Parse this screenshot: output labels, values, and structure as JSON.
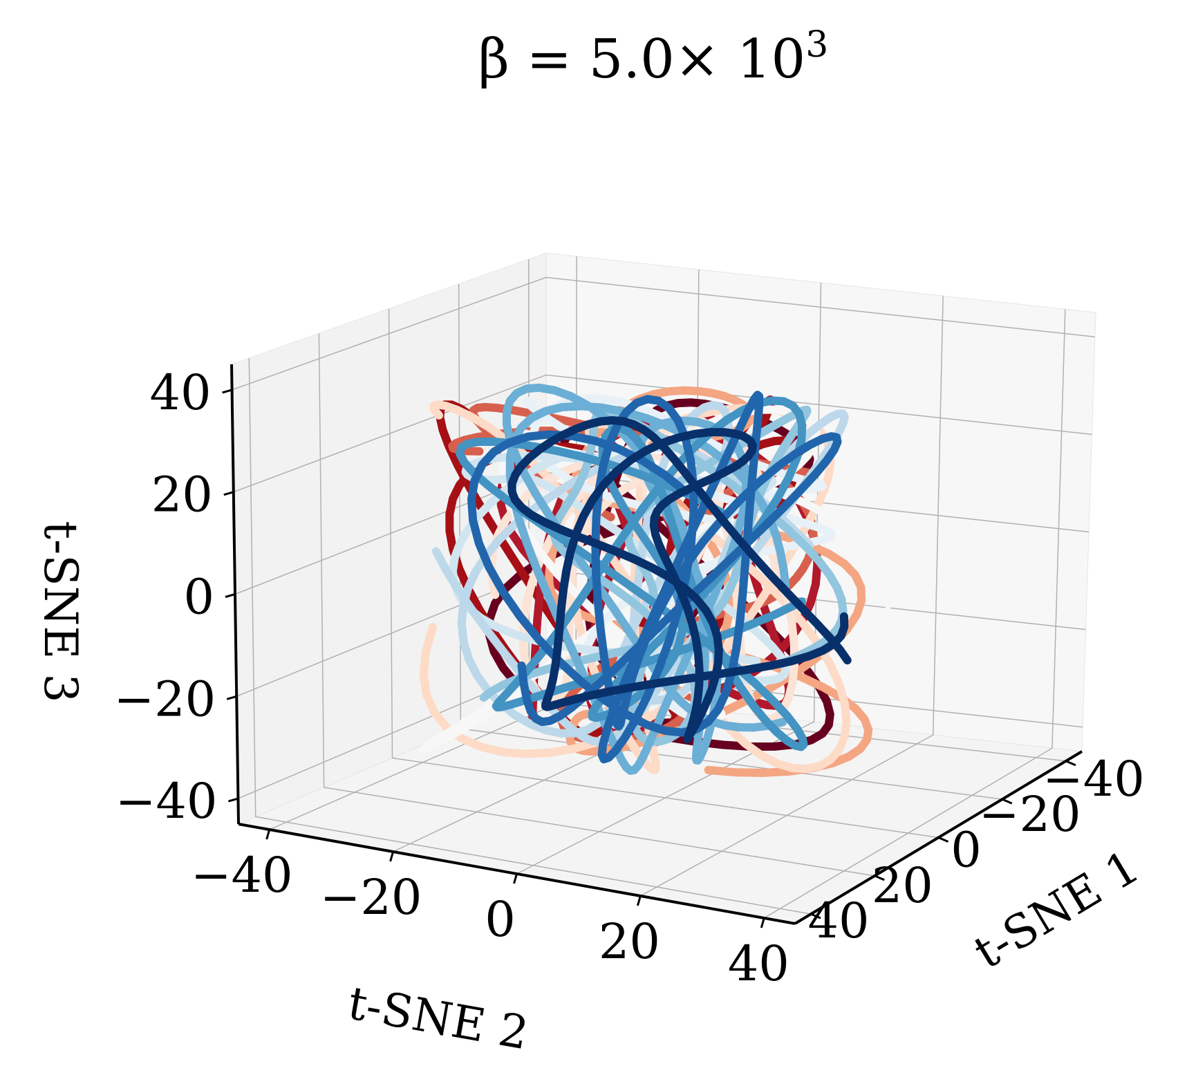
{
  "title": {
    "prefix": "β = 5.0× 10",
    "exp": "3"
  },
  "chart_data": {
    "type": "line3d",
    "xlabel": "t-SNE 1",
    "ylabel": "t-SNE 2",
    "zlabel": "t-SNE 3",
    "xlim": [
      -45,
      45
    ],
    "ylim": [
      -45,
      45
    ],
    "zlim": [
      -45,
      45
    ],
    "xticks": [
      "−40",
      "−20",
      "0",
      "20",
      "40"
    ],
    "yticks": [
      "−40",
      "−20",
      "0",
      "20",
      "40"
    ],
    "zticks": [
      "−40",
      "−20",
      "0",
      "20",
      "40"
    ],
    "grid": true,
    "colormap": "RdBu",
    "curve_colors": [
      "#67001f",
      "#a50f15",
      "#b2182b",
      "#d6604d",
      "#f4a582",
      "#fddbc7",
      "#fbe3d6",
      "#f7f7f7",
      "#e8f1f7",
      "#d1e5f0",
      "#bcd8ea",
      "#92c5de",
      "#6baed6",
      "#4393c3",
      "#2166ac",
      "#08306b"
    ]
  }
}
